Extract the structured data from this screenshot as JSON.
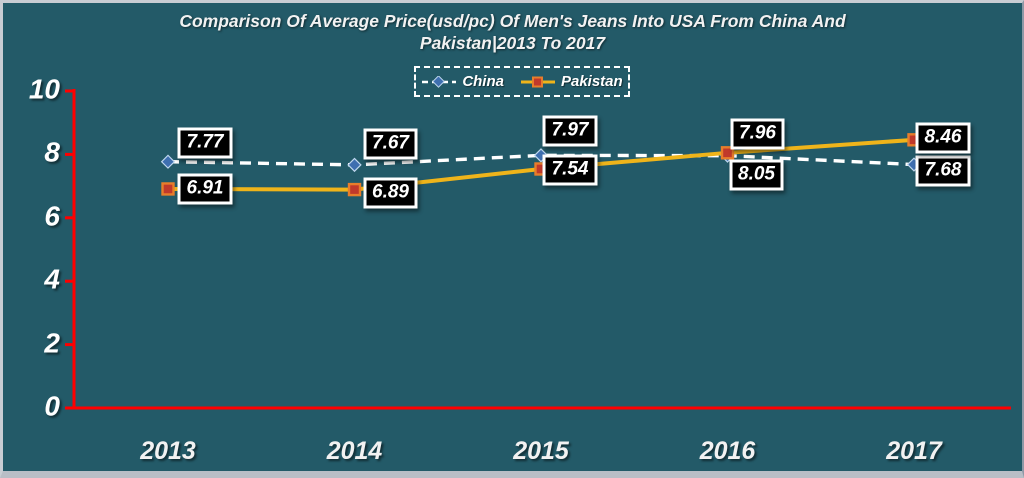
{
  "window": {
    "background": "#235A68",
    "frame_color": "#C9CDD3"
  },
  "title": {
    "line1": "Comparison Of Average Price(usd/pc) Of Men's Jeans Into USA From China And",
    "line2": "Pakistan|2013 To 2017"
  },
  "legend": {
    "items": [
      {
        "label": "China"
      },
      {
        "label": "Pakistan"
      }
    ]
  },
  "chart_data": {
    "type": "line",
    "title": "Comparison Of Average Price(usd/pc) Of Men's Jeans Into USA From China And Pakistan|2013 To 2017",
    "categories": [
      "2013",
      "2014",
      "2015",
      "2016",
      "2017"
    ],
    "series": [
      {
        "name": "China",
        "values": [
          7.77,
          7.67,
          7.97,
          7.96,
          7.68
        ],
        "color": "#FFFFFF",
        "style": "dashed",
        "marker": "diamond",
        "marker_fill": "#3E6FB0",
        "marker_border": "#BFD7EE"
      },
      {
        "name": "Pakistan",
        "values": [
          6.91,
          6.89,
          7.54,
          8.05,
          8.46
        ],
        "color": "#EFB41A",
        "style": "solid",
        "marker": "square",
        "marker_fill": "#C0392B",
        "marker_border": "#E87D2B"
      }
    ],
    "ylim": [
      0,
      10
    ],
    "yticks": [
      0,
      2,
      4,
      6,
      8,
      10
    ],
    "axis_color": "#FF0000",
    "grid": false,
    "legend_position": "top",
    "data_labels": true,
    "label_box": {
      "bg": "#000000",
      "border": "#FFFFFF",
      "text": "#FFFFFF"
    }
  }
}
